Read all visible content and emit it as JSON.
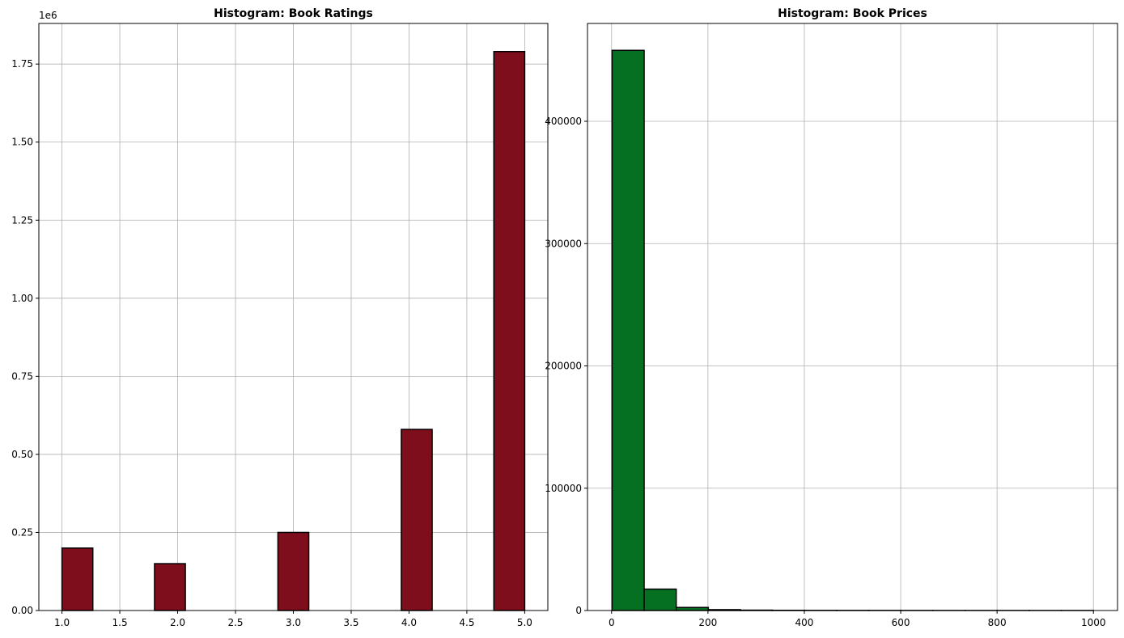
{
  "chart_data": [
    {
      "type": "bar",
      "title": "Histogram: Book Ratings",
      "xlabel": "",
      "ylabel": "",
      "y_offset_label": "1e6",
      "xlim": [
        0.8,
        5.2
      ],
      "ylim": [
        0,
        1.88
      ],
      "grid": true,
      "bar_color": "#7f0e1c",
      "edge_color": "#000000",
      "bins": [
        {
          "x0": 1.0,
          "x1": 1.2667,
          "value": 0.2
        },
        {
          "x0": 1.2667,
          "x1": 1.5333,
          "value": 0.0
        },
        {
          "x0": 1.5333,
          "x1": 1.8,
          "value": 0.0
        },
        {
          "x0": 1.8,
          "x1": 2.0667,
          "value": 0.15
        },
        {
          "x0": 2.0667,
          "x1": 2.3333,
          "value": 0.0
        },
        {
          "x0": 2.3333,
          "x1": 2.6,
          "value": 0.0
        },
        {
          "x0": 2.6,
          "x1": 2.8667,
          "value": 0.0
        },
        {
          "x0": 2.8667,
          "x1": 3.1333,
          "value": 0.25
        },
        {
          "x0": 3.1333,
          "x1": 3.4,
          "value": 0.0
        },
        {
          "x0": 3.4,
          "x1": 3.6667,
          "value": 0.0
        },
        {
          "x0": 3.6667,
          "x1": 3.9333,
          "value": 0.0
        },
        {
          "x0": 3.9333,
          "x1": 4.2,
          "value": 0.58
        },
        {
          "x0": 4.2,
          "x1": 4.4667,
          "value": 0.0
        },
        {
          "x0": 4.4667,
          "x1": 4.7333,
          "value": 0.0
        },
        {
          "x0": 4.7333,
          "x1": 5.0,
          "value": 1.79
        }
      ],
      "x_ticks": [
        1.0,
        1.5,
        2.0,
        2.5,
        3.0,
        3.5,
        4.0,
        4.5,
        5.0
      ],
      "x_tick_labels": [
        "1.0",
        "1.5",
        "2.0",
        "2.5",
        "3.0",
        "3.5",
        "4.0",
        "4.5",
        "5.0"
      ],
      "y_ticks": [
        0,
        0.25,
        0.5,
        0.75,
        1.0,
        1.25,
        1.5,
        1.75
      ],
      "y_tick_labels": [
        "0.00",
        "0.25",
        "0.50",
        "0.75",
        "1.00",
        "1.25",
        "1.50",
        "1.75"
      ]
    },
    {
      "type": "bar",
      "title": "Histogram: Book Prices",
      "xlabel": "",
      "ylabel": "",
      "xlim": [
        -50,
        1050
      ],
      "ylim": [
        0,
        480000
      ],
      "grid": true,
      "bar_color": "#067022",
      "edge_color": "#000000",
      "bins": [
        {
          "x0": 1,
          "x1": 67.6,
          "value": 458000
        },
        {
          "x0": 67.6,
          "x1": 134.2,
          "value": 17500
        },
        {
          "x0": 134.2,
          "x1": 200.8,
          "value": 2500
        },
        {
          "x0": 200.8,
          "x1": 267.4,
          "value": 700
        },
        {
          "x0": 267.4,
          "x1": 334,
          "value": 300
        },
        {
          "x0": 334,
          "x1": 400.6,
          "value": 150
        },
        {
          "x0": 400.6,
          "x1": 467.2,
          "value": 100
        },
        {
          "x0": 467.2,
          "x1": 533.8,
          "value": 80
        },
        {
          "x0": 533.8,
          "x1": 600.4,
          "value": 60
        },
        {
          "x0": 600.4,
          "x1": 667,
          "value": 40
        },
        {
          "x0": 667,
          "x1": 733.6,
          "value": 30
        },
        {
          "x0": 733.6,
          "x1": 800.2,
          "value": 20
        },
        {
          "x0": 800.2,
          "x1": 866.8,
          "value": 15
        },
        {
          "x0": 866.8,
          "x1": 933.4,
          "value": 10
        },
        {
          "x0": 933.4,
          "x1": 1000,
          "value": 20
        }
      ],
      "x_ticks": [
        0,
        200,
        400,
        600,
        800,
        1000
      ],
      "x_tick_labels": [
        "0",
        "200",
        "400",
        "600",
        "800",
        "1000"
      ],
      "y_ticks": [
        0,
        100000,
        200000,
        300000,
        400000
      ],
      "y_tick_labels": [
        "0",
        "100000",
        "200000",
        "300000",
        "400000"
      ]
    }
  ]
}
